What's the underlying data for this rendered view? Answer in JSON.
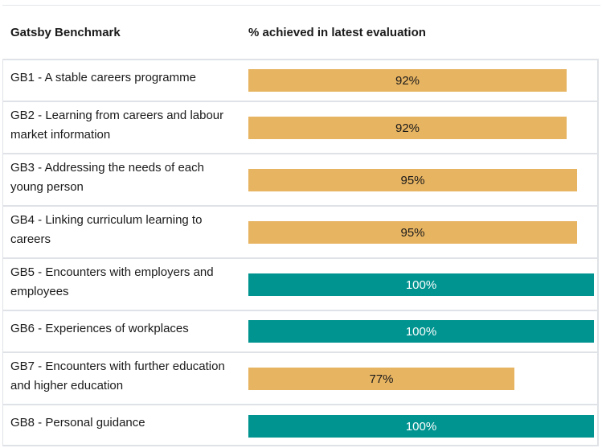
{
  "colors": {
    "below_target": "#e7b462",
    "full": "#009490",
    "border": "#dfe2e6"
  },
  "chart_data": {
    "type": "bar",
    "orientation": "horizontal",
    "columns": [
      "Gatsby Benchmark",
      "% achieved in latest evaluation"
    ],
    "categories": [
      "GB1 - A stable careers programme",
      "GB2 - Learning from careers and labour market information",
      "GB3 - Addressing the needs of each young person",
      "GB4 - Linking curriculum learning to careers",
      "GB5 - Encounters with employers and employees",
      "GB6 - Experiences of workplaces",
      "GB7 - Encounters with further education and higher education",
      "GB8 - Personal guidance"
    ],
    "values": [
      92,
      92,
      95,
      95,
      100,
      100,
      77,
      100
    ],
    "value_labels": [
      "92%",
      "92%",
      "95%",
      "95%",
      "100%",
      "100%",
      "77%",
      "100%"
    ],
    "xlim": [
      0,
      100
    ]
  }
}
